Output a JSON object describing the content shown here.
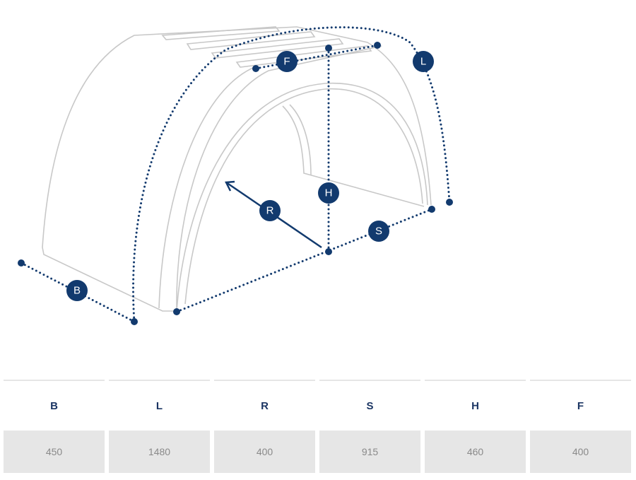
{
  "diagram": {
    "accent_color": "#123a6e",
    "labels": {
      "B": "B",
      "F": "F",
      "L": "L",
      "R": "R",
      "H": "H",
      "S": "S"
    }
  },
  "table": {
    "columns": [
      {
        "header": "B",
        "value": "450"
      },
      {
        "header": "L",
        "value": "1480"
      },
      {
        "header": "R",
        "value": "400"
      },
      {
        "header": "S",
        "value": "915"
      },
      {
        "header": "H",
        "value": "460"
      },
      {
        "header": "F",
        "value": "400"
      }
    ]
  }
}
